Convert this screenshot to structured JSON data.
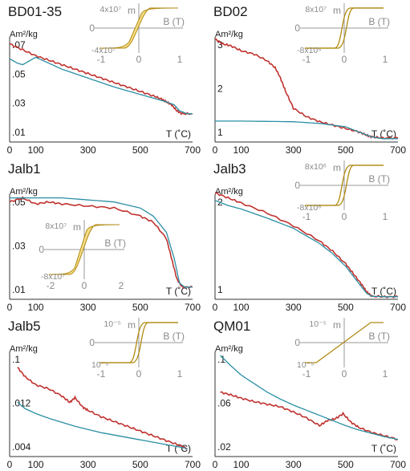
{
  "colors": {
    "heating": "#c0322f",
    "cooling": "#2a8fa3",
    "loop_fill": "#f5dd8a",
    "loop_stroke": "#b08a10",
    "inset_axis": "#9a9a9a",
    "axis": "#333333"
  },
  "chart_data": [
    {
      "type": "line",
      "title": "BD01-35",
      "ylabel": "Am²/kg",
      "xlabel": "T (˚C)",
      "x_ticks": [
        "0",
        "100",
        "300",
        "500",
        "700"
      ],
      "y_ticks": [
        ".07",
        ".05",
        ".03",
        ".01"
      ],
      "xlim": [
        0,
        700
      ],
      "ylim": [
        0,
        0.075
      ],
      "series": [
        {
          "role": "heating",
          "x": [
            0,
            50,
            100,
            150,
            200,
            250,
            300,
            350,
            400,
            450,
            500,
            550,
            580,
            600,
            620,
            640,
            660,
            700
          ],
          "y": [
            0.066,
            0.062,
            0.058,
            0.055,
            0.052,
            0.049,
            0.046,
            0.043,
            0.04,
            0.037,
            0.034,
            0.031,
            0.029,
            0.027,
            0.025,
            0.021,
            0.019,
            0.019
          ]
        },
        {
          "role": "cooling",
          "x": [
            0,
            30,
            50,
            70,
            100,
            150,
            200,
            300,
            400,
            500,
            560,
            600,
            630,
            650,
            680,
            700
          ],
          "y": [
            0.056,
            0.053,
            0.052,
            0.054,
            0.057,
            0.053,
            0.049,
            0.043,
            0.037,
            0.032,
            0.029,
            0.027,
            0.025,
            0.021,
            0.019,
            0.019
          ]
        }
      ],
      "inset": {
        "type": "hysteresis",
        "shape": "loop",
        "y_top_label": "4x10⁷",
        "y_bottom_label": "-4x10⁷",
        "y_axis_label": "m",
        "x_axis_label": "B (T)",
        "zero_label": "0",
        "x_ticks": [
          "-1",
          "0",
          "1"
        ]
      }
    },
    {
      "type": "line",
      "title": "BD02",
      "ylabel": "Am²/kg",
      "xlabel": "T (˚C)",
      "x_ticks": [
        "0",
        "100",
        "300",
        "500",
        "700"
      ],
      "y_ticks": [
        "3",
        "2",
        "1"
      ],
      "xlim": [
        0,
        700
      ],
      "ylim": [
        0,
        3.3
      ],
      "series": [
        {
          "role": "heating",
          "x": [
            0,
            30,
            60,
            100,
            150,
            200,
            230,
            250,
            270,
            300,
            350,
            400,
            450,
            500,
            550,
            580,
            600,
            640,
            700
          ],
          "y": [
            3.05,
            2.9,
            2.85,
            2.7,
            2.6,
            2.4,
            2.2,
            1.9,
            1.5,
            1.0,
            0.75,
            0.6,
            0.5,
            0.4,
            0.3,
            0.2,
            0.15,
            0.12,
            0.12
          ]
        },
        {
          "role": "cooling",
          "x": [
            0,
            100,
            200,
            300,
            400,
            500,
            550,
            600,
            640,
            700
          ],
          "y": [
            0.62,
            0.62,
            0.61,
            0.6,
            0.55,
            0.45,
            0.3,
            0.15,
            0.1,
            0.1
          ]
        }
      ],
      "inset": {
        "type": "hysteresis",
        "shape": "steep",
        "y_top_label": "8x10⁷",
        "y_bottom_label": "-8x10⁵",
        "y_axis_label": "m",
        "x_axis_label": "B (T)",
        "zero_label": "0",
        "x_ticks": [
          "-1",
          "0",
          "1"
        ]
      }
    },
    {
      "type": "line",
      "title": "Jalb1",
      "ylabel": "Am²/kg",
      "xlabel": "T (˚C)",
      "x_ticks": [
        "0",
        "100",
        "300",
        "500",
        "700"
      ],
      "y_ticks": [
        ".05",
        ".03",
        ".01"
      ],
      "xlim": [
        0,
        700
      ],
      "ylim": [
        0,
        0.055
      ],
      "series": [
        {
          "role": "heating",
          "x": [
            0,
            50,
            100,
            150,
            200,
            300,
            400,
            500,
            550,
            600,
            620,
            640,
            660,
            700
          ],
          "y": [
            0.048,
            0.05,
            0.047,
            0.048,
            0.047,
            0.046,
            0.045,
            0.041,
            0.038,
            0.03,
            0.02,
            0.01,
            0.006,
            0.006
          ]
        },
        {
          "role": "cooling",
          "x": [
            0,
            100,
            200,
            300,
            400,
            500,
            550,
            600,
            630,
            650,
            670,
            700
          ],
          "y": [
            0.05,
            0.05,
            0.05,
            0.049,
            0.048,
            0.045,
            0.041,
            0.033,
            0.02,
            0.008,
            0.006,
            0.006
          ]
        }
      ],
      "inset": {
        "type": "hysteresis",
        "shape": "loop",
        "y_top_label": "8x10⁷",
        "y_bottom_label": "-8x10⁷",
        "y_axis_label": "m",
        "x_axis_label": "B (T)",
        "zero_label": "0",
        "x_ticks": [
          "-2",
          "0",
          "2"
        ]
      }
    },
    {
      "type": "line",
      "title": "Jalb3",
      "ylabel": "Am²/kg",
      "xlabel": "T (˚C)",
      "x_ticks": [
        "0",
        "100",
        "300",
        "500",
        "700"
      ],
      "y_ticks": [
        "2",
        "1"
      ],
      "xlim": [
        0,
        700
      ],
      "ylim": [
        0,
        2.2
      ],
      "series": [
        {
          "role": "heating",
          "x": [
            0,
            50,
            100,
            200,
            300,
            400,
            450,
            500,
            530,
            560,
            580,
            600,
            650,
            700
          ],
          "y": [
            2.1,
            2.0,
            1.9,
            1.7,
            1.45,
            1.15,
            0.95,
            0.7,
            0.5,
            0.3,
            0.15,
            0.06,
            0.05,
            0.05
          ]
        },
        {
          "role": "cooling",
          "x": [
            0,
            50,
            100,
            200,
            300,
            400,
            450,
            500,
            530,
            560,
            580,
            600,
            650,
            700
          ],
          "y": [
            1.95,
            1.85,
            1.78,
            1.6,
            1.4,
            1.1,
            0.9,
            0.65,
            0.45,
            0.25,
            0.12,
            0.06,
            0.05,
            0.05
          ]
        }
      ],
      "inset": {
        "type": "hysteresis",
        "shape": "steep",
        "y_top_label": "8x10⁶",
        "y_bottom_label": "-8x10⁶",
        "y_axis_label": "m",
        "x_axis_label": "B (T)",
        "zero_label": "0",
        "x_ticks": [
          "-1",
          "0",
          "1"
        ]
      }
    },
    {
      "type": "line",
      "title": "Jalb5",
      "ylabel": "Am²/kg",
      "xlabel": "T (˚C)",
      "x_ticks": [
        "0",
        "100",
        "300",
        "500",
        "700"
      ],
      "y_ticks": [
        ".1",
        ".012",
        ".004"
      ],
      "xlim": [
        0,
        700
      ],
      "ylim": [
        0,
        0.14
      ],
      "series": [
        {
          "role": "heating",
          "x": [
            30,
            60,
            100,
            150,
            200,
            230,
            250,
            280,
            300,
            350,
            400,
            450,
            500,
            550,
            600,
            650,
            680
          ],
          "y": [
            0.112,
            0.1,
            0.09,
            0.085,
            0.076,
            0.068,
            0.074,
            0.062,
            0.058,
            0.05,
            0.044,
            0.038,
            0.032,
            0.026,
            0.02,
            0.014,
            0.01
          ]
        },
        {
          "role": "cooling",
          "x": [
            30,
            60,
            100,
            150,
            200,
            250,
            300,
            350,
            400,
            450,
            500,
            550,
            600,
            650,
            680
          ],
          "y": [
            0.068,
            0.06,
            0.054,
            0.048,
            0.043,
            0.038,
            0.034,
            0.03,
            0.027,
            0.024,
            0.021,
            0.018,
            0.015,
            0.012,
            0.01
          ]
        }
      ],
      "inset": {
        "type": "hysteresis",
        "shape": "steep",
        "y_top_label": "10⁻⁵",
        "y_bottom_label": "10⁻⁵",
        "y_axis_label": "m",
        "x_axis_label": "B (T)",
        "zero_label": "0",
        "x_ticks": [
          "-1",
          "0",
          "1"
        ]
      }
    },
    {
      "type": "line",
      "title": "QM01",
      "ylabel": "Am²/kg",
      "xlabel": "T (˚C)",
      "x_ticks": [
        "0",
        "100",
        "300",
        "500",
        "700"
      ],
      "y_ticks": [
        ".1",
        ".06",
        ".02"
      ],
      "xlim": [
        0,
        700
      ],
      "ylim": [
        0,
        0.13
      ],
      "series": [
        {
          "role": "heating",
          "x": [
            20,
            60,
            100,
            150,
            200,
            250,
            300,
            350,
            400,
            430,
            460,
            490,
            520,
            550,
            600,
            650,
            700
          ],
          "y": [
            0.075,
            0.072,
            0.068,
            0.064,
            0.061,
            0.058,
            0.052,
            0.045,
            0.036,
            0.042,
            0.044,
            0.05,
            0.04,
            0.034,
            0.028,
            0.024,
            0.02
          ]
        },
        {
          "role": "cooling",
          "x": [
            20,
            60,
            100,
            150,
            200,
            250,
            300,
            350,
            400,
            450,
            500,
            550,
            600,
            650,
            700
          ],
          "y": [
            0.118,
            0.106,
            0.095,
            0.085,
            0.075,
            0.067,
            0.06,
            0.054,
            0.048,
            0.042,
            0.036,
            0.031,
            0.027,
            0.023,
            0.02
          ]
        }
      ],
      "inset": {
        "type": "hysteresis",
        "shape": "linear",
        "y_top_label": "10⁻⁵",
        "y_bottom_label": "10⁻⁵",
        "y_axis_label": "m",
        "x_axis_label": "B (T)",
        "zero_label": "0",
        "x_ticks": [
          "-1",
          "0",
          "1"
        ]
      }
    }
  ]
}
